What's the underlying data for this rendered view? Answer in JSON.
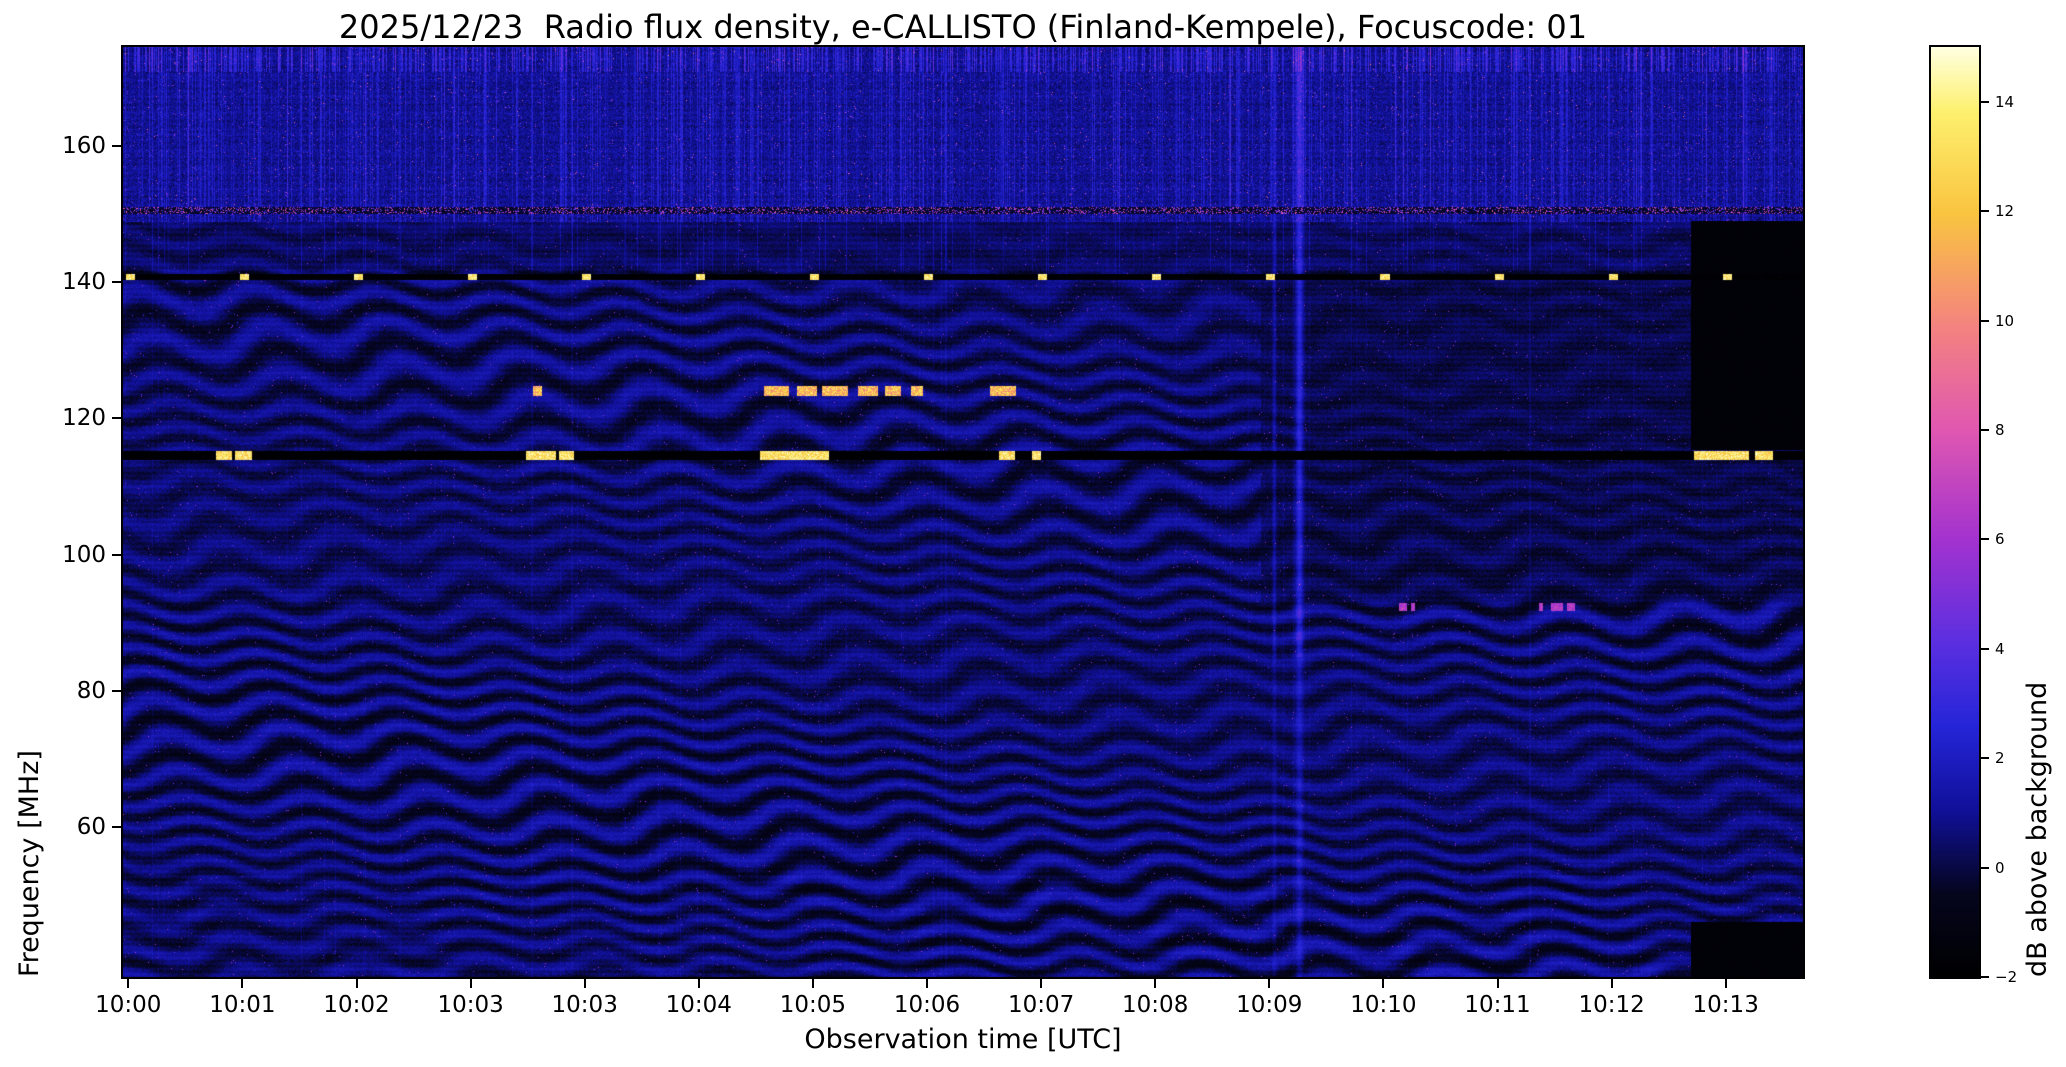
{
  "chart_data": {
    "type": "heatmap",
    "title": "2025/12/23  Radio flux density, e-CALLISTO (Finland-Kempele), Focuscode: 01",
    "xlabel": "Observation time [UTC]",
    "ylabel": "Frequency [MHz]",
    "x_tick_labels": [
      "10:00",
      "10:01",
      "10:02",
      "10:03",
      "10:03",
      "10:04",
      "10:05",
      "10:06",
      "10:07",
      "10:08",
      "10:09",
      "10:10",
      "10:11",
      "10:12",
      "10:13"
    ],
    "y_tick_labels": [
      60,
      80,
      100,
      120,
      140,
      160
    ],
    "freq_range_mhz": [
      38,
      174.5
    ],
    "colorbar": {
      "label": "dB above background",
      "tick_labels": [
        -2,
        0,
        2,
        4,
        6,
        8,
        10,
        12,
        14
      ],
      "value_range": [
        -2,
        15
      ],
      "colormap_stops": [
        [
          0.0,
          "#000000"
        ],
        [
          0.09,
          "#05051e"
        ],
        [
          0.18,
          "#10109a"
        ],
        [
          0.27,
          "#2525d8"
        ],
        [
          0.36,
          "#5b2fe0"
        ],
        [
          0.47,
          "#a332cf"
        ],
        [
          0.59,
          "#e058b0"
        ],
        [
          0.7,
          "#f4837f"
        ],
        [
          0.82,
          "#f9c440"
        ],
        [
          0.93,
          "#fdf06e"
        ],
        [
          1.0,
          "#ffffe0"
        ]
      ]
    },
    "features": {
      "saturated_line_mhz": [
        113.9,
        115.2
      ],
      "line_bursts_u": [
        [
          0.055,
          0.0645
        ],
        [
          0.0665,
          0.0762
        ],
        [
          0.2394,
          0.2575
        ],
        [
          0.259,
          0.2684
        ],
        [
          0.3791,
          0.4199
        ],
        [
          0.5212,
          0.5306
        ],
        [
          0.5408,
          0.5463
        ],
        [
          0.9348,
          0.9678
        ],
        [
          0.9709,
          0.9819
        ]
      ],
      "dotted_line_mhz": [
        140.3,
        141.2
      ],
      "dot_start_u": 0.004,
      "dot_spacing_u": 0.0679,
      "dot_half_width_u": 0.0027,
      "dot_count": 15,
      "speckle_line_mhz": [
        150.0,
        151.0
      ],
      "noisy_band_min_mhz": 148.8,
      "blackout_rect": {
        "u_start": 0.933,
        "f_mhz": [
          115.3,
          149.0
        ]
      },
      "blackout_bottom": {
        "u_start": 0.933,
        "f_max_mhz": 46.0
      },
      "texture_seam_u": 0.677,
      "bright_streak_u": 0.7,
      "dash_line_mhz": [
        123.3,
        124.7
      ],
      "dash_segments_u": [
        [
          0.244,
          0.249
        ],
        [
          0.381,
          0.396
        ],
        [
          0.401,
          0.413
        ],
        [
          0.416,
          0.431
        ],
        [
          0.437,
          0.449
        ],
        [
          0.453,
          0.463
        ],
        [
          0.469,
          0.476
        ],
        [
          0.516,
          0.531
        ]
      ],
      "minor_dot_rows": [
        {
          "f_mhz": 92.3,
          "u": [
            0.752,
            0.776
          ]
        },
        {
          "f_mhz": 92.3,
          "u": [
            0.84,
            0.864
          ]
        }
      ]
    }
  }
}
